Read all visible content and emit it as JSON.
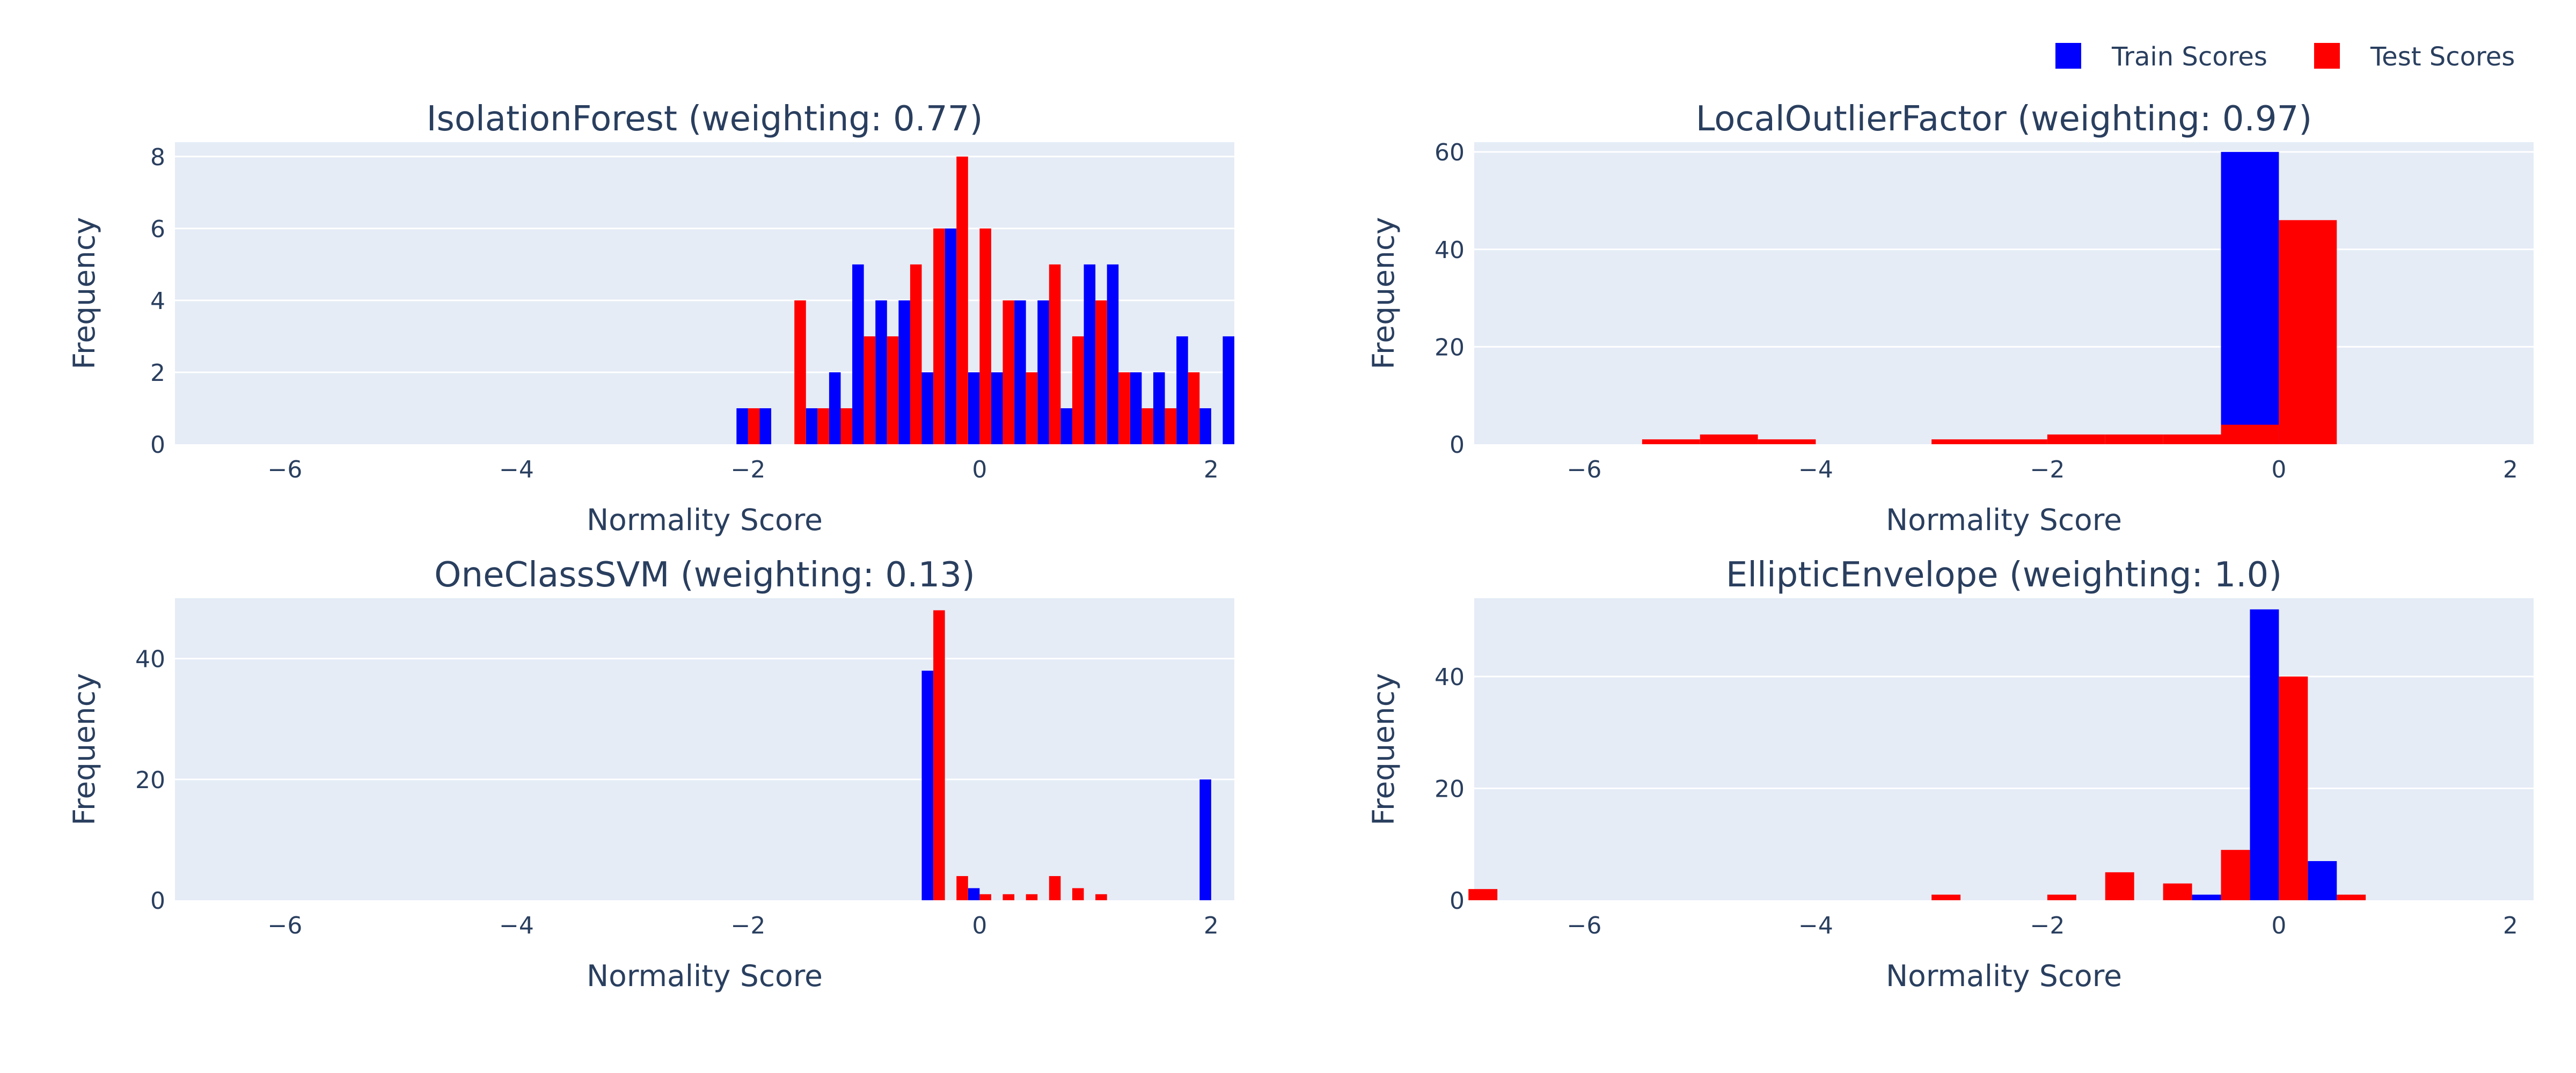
{
  "legend": {
    "entries": [
      {
        "name": "Train Scores",
        "color": "#0000ff"
      },
      {
        "name": "Test Scores",
        "color": "#ff0000"
      }
    ],
    "placement": "top-right"
  },
  "chart_data": [
    {
      "type": "bar",
      "title": "IsolationForest (weighting: 0.77)",
      "xlabel": "Normality Score",
      "ylabel": "Frequency",
      "xlim": [
        -6.95,
        2.2
      ],
      "ylim": [
        0,
        8.4
      ],
      "xticks": [
        -6,
        -4,
        -2,
        0,
        2
      ],
      "yticks": [
        0,
        2,
        4,
        6,
        8
      ],
      "grid": true,
      "bin_width": 0.2,
      "series": [
        {
          "name": "Train Scores",
          "color": "#0000ff",
          "bins": [
            [
              -2.0,
              1
            ],
            [
              -1.8,
              1
            ],
            [
              -1.4,
              1
            ],
            [
              -1.2,
              2
            ],
            [
              -1.0,
              5
            ],
            [
              -0.8,
              4
            ],
            [
              -0.6,
              4
            ],
            [
              -0.4,
              2
            ],
            [
              -0.2,
              6
            ],
            [
              0.0,
              2
            ],
            [
              0.2,
              2
            ],
            [
              0.4,
              4
            ],
            [
              0.6,
              4
            ],
            [
              0.8,
              1
            ],
            [
              1.0,
              5
            ],
            [
              1.2,
              5
            ],
            [
              1.4,
              2
            ],
            [
              1.6,
              2
            ],
            [
              1.8,
              3
            ],
            [
              2.0,
              1
            ],
            [
              2.2,
              3
            ]
          ]
        },
        {
          "name": "Test Scores",
          "color": "#ff0000",
          "bins": [
            [
              -2.0,
              1
            ],
            [
              -1.6,
              4
            ],
            [
              -1.4,
              1
            ],
            [
              -1.2,
              1
            ],
            [
              -1.0,
              3
            ],
            [
              -0.8,
              3
            ],
            [
              -0.6,
              5
            ],
            [
              -0.4,
              6
            ],
            [
              -0.2,
              8
            ],
            [
              0.0,
              6
            ],
            [
              0.2,
              4
            ],
            [
              0.4,
              2
            ],
            [
              0.6,
              5
            ],
            [
              0.8,
              3
            ],
            [
              1.0,
              4
            ],
            [
              1.2,
              2
            ],
            [
              1.4,
              1
            ],
            [
              1.6,
              1
            ],
            [
              1.8,
              2
            ]
          ]
        }
      ]
    },
    {
      "type": "bar",
      "title": "LocalOutlierFactor (weighting: 0.97)",
      "xlabel": "Normality Score",
      "ylabel": "Frequency",
      "xlim": [
        -6.95,
        2.2
      ],
      "ylim": [
        0,
        62
      ],
      "xticks": [
        -6,
        -4,
        -2,
        0,
        2
      ],
      "yticks": [
        0,
        20,
        40,
        60
      ],
      "grid": true,
      "bin_width": 1.0,
      "series": [
        {
          "name": "Train Scores",
          "color": "#0000ff",
          "bins": [
            [
              0.0,
              60
            ]
          ]
        },
        {
          "name": "Test Scores",
          "color": "#ff0000",
          "bins": [
            [
              -5.5,
              1
            ],
            [
              -5.0,
              2
            ],
            [
              -4.5,
              1
            ],
            [
              -3.0,
              1
            ],
            [
              -2.5,
              1
            ],
            [
              -2.0,
              2
            ],
            [
              -1.5,
              2
            ],
            [
              -1.0,
              2
            ],
            [
              -0.5,
              4
            ],
            [
              0.0,
              46
            ]
          ]
        }
      ]
    },
    {
      "type": "bar",
      "title": "OneClassSVM (weighting: 0.13)",
      "xlabel": "Normality Score",
      "ylabel": "Frequency",
      "xlim": [
        -6.95,
        2.2
      ],
      "ylim": [
        0,
        50
      ],
      "xticks": [
        -6,
        -4,
        -2,
        0,
        2
      ],
      "yticks": [
        0,
        20,
        40
      ],
      "grid": true,
      "bin_width": 0.2,
      "series": [
        {
          "name": "Train Scores",
          "color": "#0000ff",
          "bins": [
            [
              -0.4,
              38
            ],
            [
              0.0,
              2
            ],
            [
              2.0,
              20
            ]
          ]
        },
        {
          "name": "Test Scores",
          "color": "#ff0000",
          "bins": [
            [
              -0.4,
              48
            ],
            [
              -0.2,
              4
            ],
            [
              0.0,
              1
            ],
            [
              0.2,
              1
            ],
            [
              0.4,
              1
            ],
            [
              0.6,
              4
            ],
            [
              0.8,
              2
            ],
            [
              1.0,
              1
            ]
          ]
        }
      ]
    },
    {
      "type": "bar",
      "title": "EllipticEnvelope (weighting: 1.0)",
      "xlabel": "Normality Score",
      "ylabel": "Frequency",
      "xlim": [
        -6.95,
        2.2
      ],
      "ylim": [
        0,
        54
      ],
      "xticks": [
        -6,
        -4,
        -2,
        0,
        2
      ],
      "yticks": [
        0,
        20,
        40
      ],
      "grid": true,
      "bin_width": 0.5,
      "series": [
        {
          "name": "Train Scores",
          "color": "#0000ff",
          "bins": [
            [
              -0.5,
              1
            ],
            [
              0.0,
              52
            ],
            [
              0.5,
              7
            ]
          ]
        },
        {
          "name": "Test Scores",
          "color": "#ff0000",
          "bins": [
            [
              -7.0,
              2
            ],
            [
              -3.0,
              1
            ],
            [
              -2.0,
              1
            ],
            [
              -1.5,
              5
            ],
            [
              -1.0,
              3
            ],
            [
              -0.5,
              9
            ],
            [
              0.0,
              40
            ],
            [
              0.5,
              1
            ]
          ]
        }
      ]
    }
  ]
}
